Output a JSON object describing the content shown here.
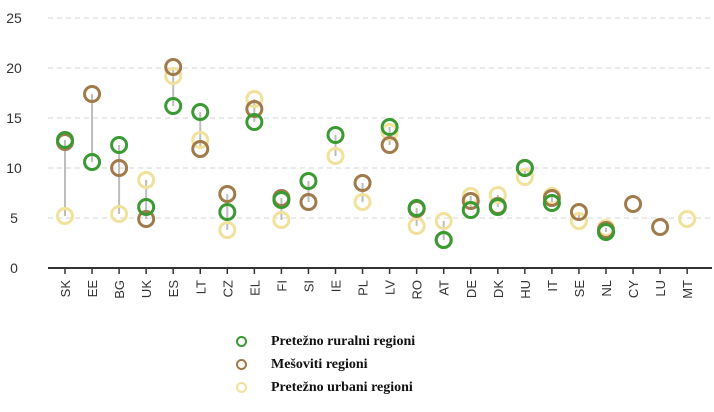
{
  "colors": {
    "rural": "#3a9a32",
    "mixed": "#a07a4a",
    "urban": "#f0e29a",
    "connector": "#bdbdbd",
    "grid": "#d4d4d4",
    "axis": "#333333",
    "text": "#333333"
  },
  "chart_data": {
    "type": "scatter",
    "title": "",
    "xlabel": "",
    "ylabel": "",
    "ylim": [
      0,
      25
    ],
    "yticks": [
      "0",
      "5",
      "10",
      "15",
      "20",
      "25"
    ],
    "grid": true,
    "legend_position": "bottom",
    "categories": [
      "SK",
      "EE",
      "BG",
      "UK",
      "ES",
      "LT",
      "CZ",
      "EL",
      "FI",
      "SI",
      "IE",
      "PL",
      "LV",
      "RO",
      "AT",
      "DE",
      "DK",
      "HU",
      "IT",
      "SE",
      "NL",
      "CY",
      "LU",
      "MT"
    ],
    "series": [
      {
        "name": "Pretežno ruralni regioni",
        "key": "rural",
        "values": [
          12.8,
          10.6,
          12.3,
          6.1,
          16.2,
          15.6,
          5.6,
          14.6,
          6.8,
          8.7,
          13.3,
          null,
          14.1,
          6.0,
          2.8,
          5.8,
          6.1,
          10.0,
          6.5,
          null,
          3.6,
          null,
          null,
          null
        ]
      },
      {
        "name": "Mešoviti regioni",
        "key": "mixed",
        "values": [
          12.6,
          17.4,
          10.0,
          4.9,
          20.1,
          11.9,
          7.4,
          15.9,
          7.0,
          6.6,
          null,
          8.5,
          12.3,
          5.9,
          2.8,
          6.7,
          6.2,
          10.0,
          7.0,
          5.6,
          3.8,
          6.4,
          4.1,
          null
        ]
      },
      {
        "name": "Pretežno urbani regioni",
        "key": "urban",
        "values": [
          5.2,
          null,
          5.4,
          8.8,
          19.2,
          12.8,
          3.8,
          16.9,
          4.8,
          null,
          11.2,
          6.6,
          13.6,
          4.2,
          4.7,
          7.2,
          7.3,
          9.1,
          7.2,
          4.7,
          4.0,
          null,
          null,
          4.9
        ]
      }
    ]
  }
}
